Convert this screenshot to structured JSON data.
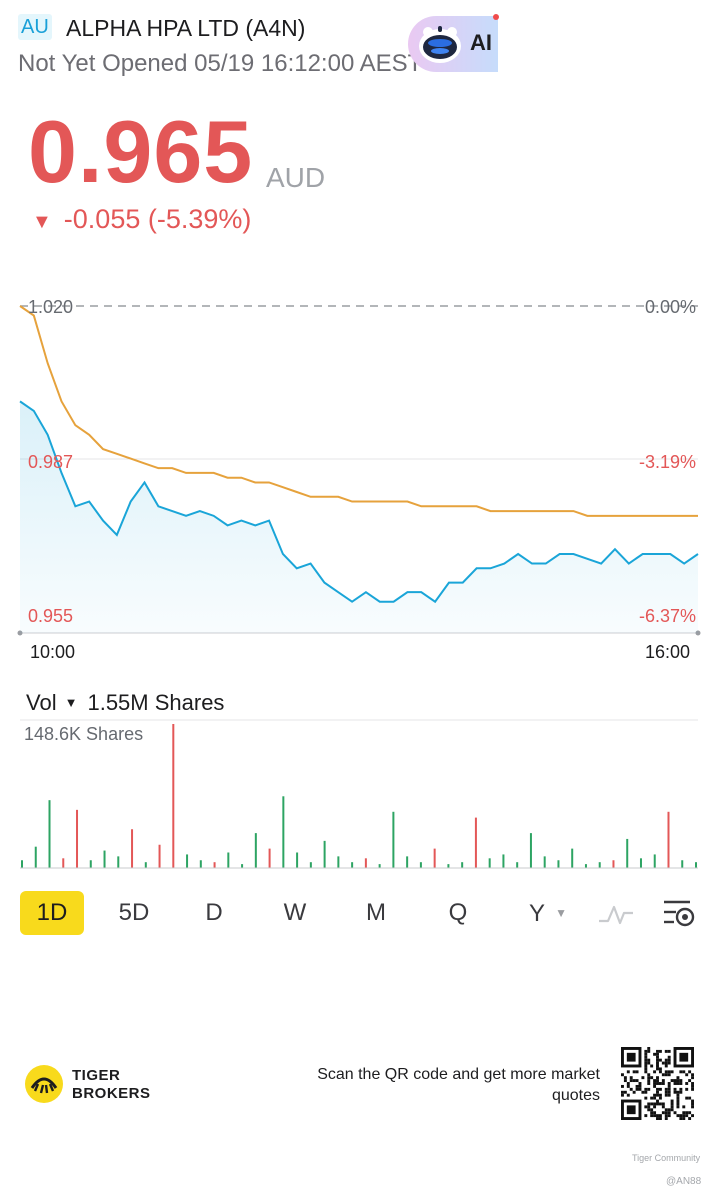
{
  "header": {
    "market_badge": "AU",
    "stock_name": "ALPHA HPA LTD (A4N)",
    "status": "Not Yet Opened 05/19 16:12:00 AEST",
    "ai_label": "AI"
  },
  "quote": {
    "price": "0.965",
    "currency": "AUD",
    "change": "-0.055 (-5.39%)",
    "direction_symbol": "▼"
  },
  "chart": {
    "y_labels": [
      "1.020",
      "0.987",
      "0.955"
    ],
    "pct_labels": [
      "0.00%",
      "-3.19%",
      "-6.37%"
    ],
    "x_labels": [
      "10:00",
      "16:00"
    ],
    "price_range": [
      0.955,
      1.02
    ]
  },
  "volume": {
    "label": "Vol",
    "total": "1.55M Shares",
    "max_label": "148.6K Shares"
  },
  "periods": [
    "1D",
    "5D",
    "D",
    "W",
    "M",
    "Q",
    "Y"
  ],
  "active_period": "1D",
  "footer": {
    "brand_line1": "TIGER",
    "brand_line2": "BROKERS",
    "scan_text": "Scan the QR code and get more market quotes",
    "watermark": "Tiger Community",
    "handle": "@AN88"
  },
  "colors": {
    "down": "#e35757",
    "price_line": "#1aa5d8",
    "avg_line": "#e6a23c",
    "vol_up": "#2da463",
    "vol_down": "#e35757",
    "active_tab": "#f8da1c"
  },
  "icons": [
    "ai-robot-icon",
    "caret-down-icon",
    "line-style-icon",
    "chart-settings-icon",
    "tiger-logo-icon",
    "qr-code-icon"
  ],
  "chart_data": {
    "type": "line",
    "xlabel": "",
    "ylabel": "",
    "x_ticks": [
      "10:00",
      "16:00"
    ],
    "ylim": [
      0.955,
      1.02
    ],
    "series": [
      {
        "values": [
          1.0,
          0.998,
          0.993,
          0.985,
          0.978,
          0.979,
          0.975,
          0.972,
          0.979,
          0.983,
          0.978,
          0.977,
          0.976,
          0.977,
          0.976,
          0.974,
          0.975,
          0.974,
          0.975,
          0.968,
          0.965,
          0.966,
          0.962,
          0.96,
          0.958,
          0.96,
          0.958,
          0.958,
          0.96,
          0.96,
          0.958,
          0.962,
          0.962,
          0.965,
          0.965,
          0.966,
          0.968,
          0.966,
          0.966,
          0.968,
          0.968,
          0.967,
          0.966,
          0.969,
          0.966,
          0.968,
          0.968,
          0.968,
          0.966,
          0.968
        ]
      },
      {
        "values": [
          1.02,
          1.018,
          1.008,
          1.0,
          0.995,
          0.993,
          0.99,
          0.989,
          0.988,
          0.987,
          0.986,
          0.986,
          0.985,
          0.985,
          0.985,
          0.984,
          0.984,
          0.983,
          0.983,
          0.982,
          0.981,
          0.98,
          0.98,
          0.98,
          0.979,
          0.979,
          0.979,
          0.979,
          0.979,
          0.978,
          0.978,
          0.978,
          0.978,
          0.978,
          0.977,
          0.977,
          0.977,
          0.977,
          0.977,
          0.977,
          0.977,
          0.976,
          0.976,
          0.976,
          0.976,
          0.976,
          0.976,
          0.976,
          0.976,
          0.976
        ]
      }
    ],
    "volume": {
      "max": 148.6,
      "bars": [
        [
          8,
          "u"
        ],
        [
          22,
          "u"
        ],
        [
          70,
          "u"
        ],
        [
          10,
          "d"
        ],
        [
          60,
          "d"
        ],
        [
          8,
          "u"
        ],
        [
          18,
          "u"
        ],
        [
          12,
          "u"
        ],
        [
          40,
          "d"
        ],
        [
          6,
          "u"
        ],
        [
          24,
          "d"
        ],
        [
          148.6,
          "d"
        ],
        [
          14,
          "u"
        ],
        [
          8,
          "u"
        ],
        [
          6,
          "d"
        ],
        [
          16,
          "u"
        ],
        [
          4,
          "u"
        ],
        [
          36,
          "u"
        ],
        [
          20,
          "d"
        ],
        [
          74,
          "u"
        ],
        [
          16,
          "u"
        ],
        [
          6,
          "u"
        ],
        [
          28,
          "u"
        ],
        [
          12,
          "u"
        ],
        [
          6,
          "u"
        ],
        [
          10,
          "d"
        ],
        [
          4,
          "u"
        ],
        [
          58,
          "u"
        ],
        [
          12,
          "u"
        ],
        [
          6,
          "u"
        ],
        [
          20,
          "d"
        ],
        [
          4,
          "u"
        ],
        [
          6,
          "u"
        ],
        [
          52,
          "d"
        ],
        [
          10,
          "u"
        ],
        [
          14,
          "u"
        ],
        [
          6,
          "u"
        ],
        [
          36,
          "u"
        ],
        [
          12,
          "u"
        ],
        [
          8,
          "u"
        ],
        [
          20,
          "u"
        ],
        [
          4,
          "u"
        ],
        [
          6,
          "u"
        ],
        [
          8,
          "d"
        ],
        [
          30,
          "u"
        ],
        [
          10,
          "u"
        ],
        [
          14,
          "u"
        ],
        [
          58,
          "d"
        ],
        [
          8,
          "u"
        ],
        [
          6,
          "u"
        ]
      ]
    }
  }
}
